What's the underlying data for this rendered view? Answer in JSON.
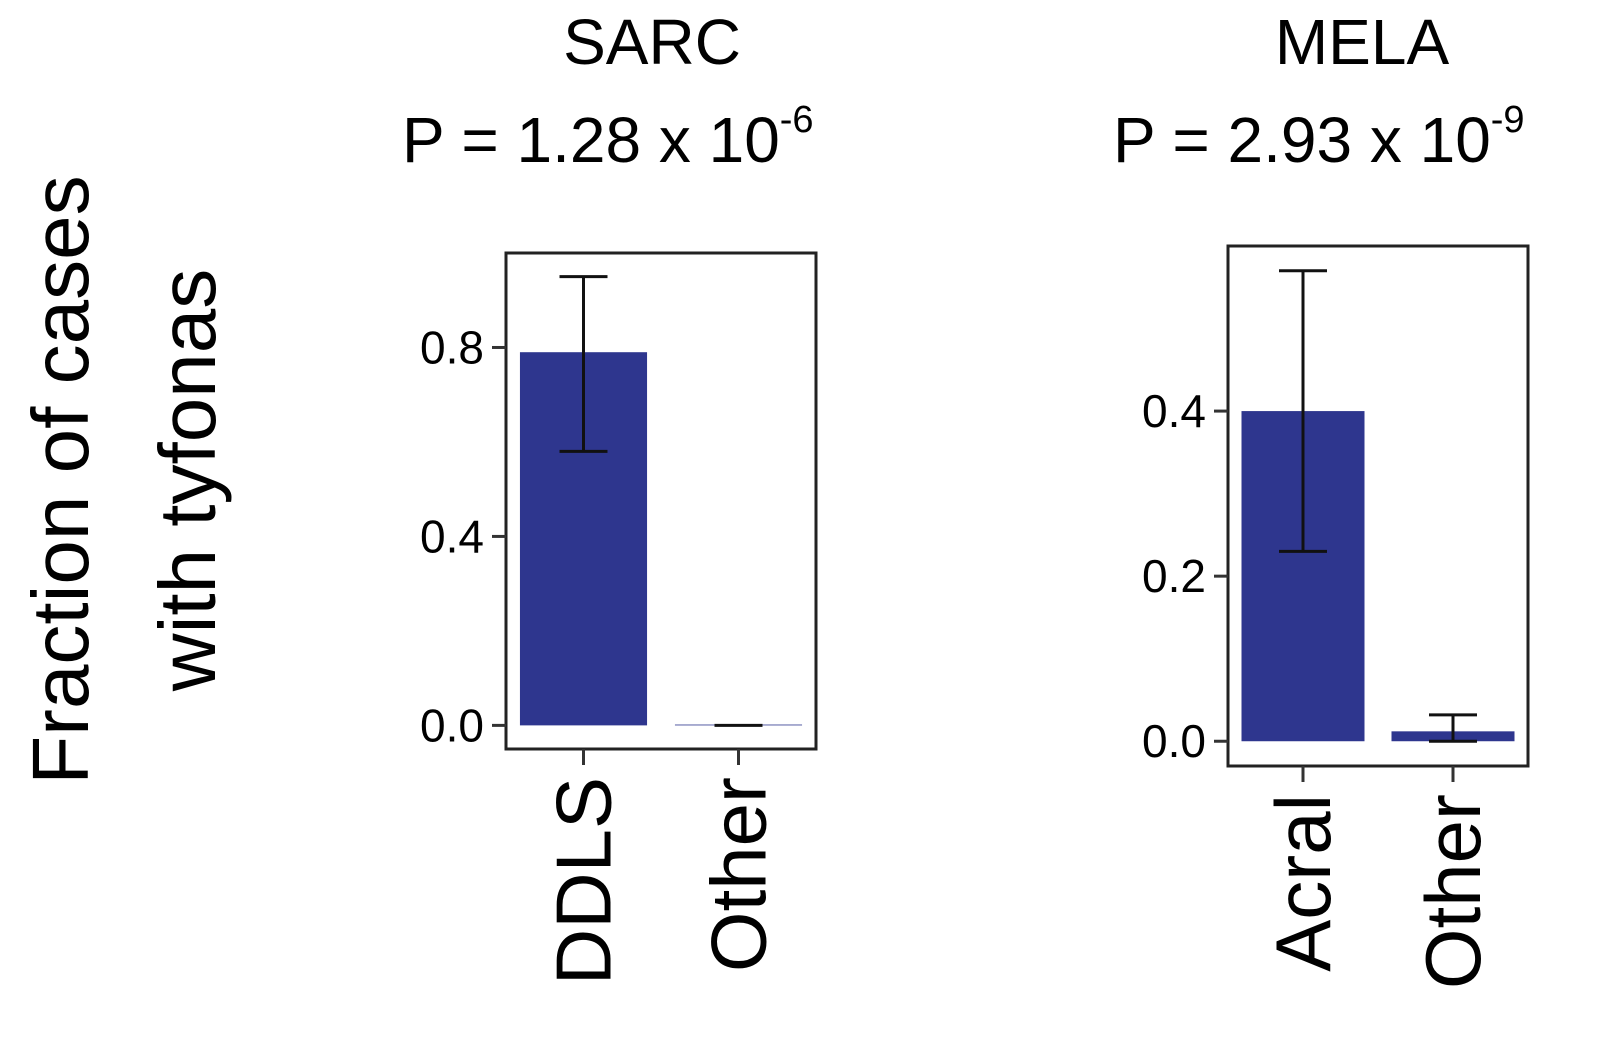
{
  "figure": {
    "ylabel_line1": "Fraction of cases",
    "ylabel_line2": "with tyfonas",
    "bar_color": "#2E368E"
  },
  "chart_data": [
    {
      "type": "bar",
      "title": "SARC",
      "pvalue_label": "P = 1.28 x 10",
      "pvalue_exponent": "-6",
      "categories": [
        "DDLS",
        "Other"
      ],
      "values": [
        0.79,
        0.0
      ],
      "error_low": [
        0.58,
        0.0
      ],
      "error_high": [
        0.95,
        0.0
      ],
      "ylim": [
        -0.05,
        1.0
      ],
      "yticks": [
        0.0,
        0.4,
        0.8
      ],
      "ytick_labels": [
        "0.0",
        "0.4",
        "0.8"
      ],
      "grid": false
    },
    {
      "type": "bar",
      "title": "MELA",
      "pvalue_label": "P = 2.93 x 10",
      "pvalue_exponent": "-9",
      "categories": [
        "Acral",
        "Other"
      ],
      "values": [
        0.4,
        0.012
      ],
      "error_low": [
        0.23,
        0.0
      ],
      "error_high": [
        0.57,
        0.032
      ],
      "ylim": [
        -0.03,
        0.6
      ],
      "yticks": [
        0.0,
        0.2,
        0.4
      ],
      "ytick_labels": [
        "0.0",
        "0.2",
        "0.4"
      ],
      "grid": false
    }
  ]
}
